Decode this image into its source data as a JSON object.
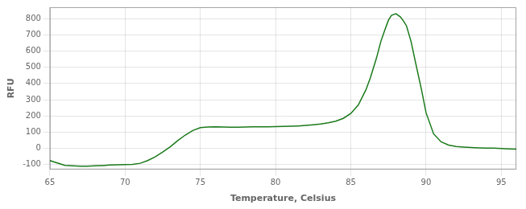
{
  "chart_data": {
    "type": "line",
    "xlabel": "Temperature, Celsius",
    "ylabel": "RFU",
    "xlim": [
      65,
      96
    ],
    "ylim": [
      -130,
      870
    ],
    "xticks": [
      65,
      70,
      75,
      80,
      85,
      90,
      95
    ],
    "yticks": [
      -100,
      0,
      100,
      200,
      300,
      400,
      500,
      600,
      700,
      800
    ],
    "grid": true,
    "color": "#1a7a1a",
    "x": [
      65.0,
      65.5,
      66.0,
      66.5,
      67.0,
      67.5,
      68.0,
      68.5,
      69.0,
      69.5,
      70.0,
      70.5,
      71.0,
      71.5,
      72.0,
      72.5,
      73.0,
      73.5,
      74.0,
      74.5,
      75.0,
      75.5,
      76.0,
      76.5,
      77.0,
      77.5,
      78.0,
      78.5,
      79.0,
      79.5,
      80.0,
      80.5,
      81.0,
      81.5,
      82.0,
      82.5,
      83.0,
      83.5,
      84.0,
      84.5,
      85.0,
      85.5,
      86.0,
      86.3,
      86.7,
      87.0,
      87.3,
      87.5,
      87.7,
      88.0,
      88.3,
      88.5,
      88.7,
      89.0,
      89.3,
      89.7,
      90.0,
      90.5,
      91.0,
      91.5,
      92.0,
      92.5,
      93.0,
      93.5,
      94.0,
      94.5,
      95.0,
      95.5,
      96.0
    ],
    "values": [
      -75,
      -90,
      -105,
      -108,
      -110,
      -110,
      -108,
      -106,
      -103,
      -101,
      -100,
      -99,
      -92,
      -75,
      -52,
      -22,
      10,
      48,
      82,
      110,
      128,
      132,
      133,
      132,
      131,
      131,
      132,
      133,
      133,
      133,
      134,
      135,
      136,
      138,
      141,
      145,
      150,
      158,
      168,
      185,
      215,
      268,
      360,
      435,
      555,
      660,
      740,
      790,
      820,
      830,
      810,
      785,
      755,
      660,
      530,
      360,
      220,
      90,
      40,
      20,
      12,
      8,
      5,
      3,
      2,
      1,
      -1,
      -3,
      -5
    ]
  }
}
